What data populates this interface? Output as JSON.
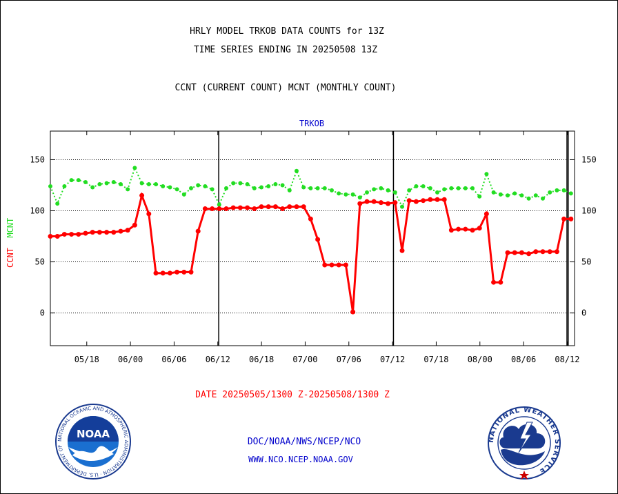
{
  "header": {
    "title_line1": "HRLY MODEL TRKOB DATA COUNTS for 13Z",
    "title_line2": "TIME SERIES ENDING IN 20250508 13Z",
    "subtitle": "CCNT (CURRENT COUNT) MCNT (MONTHLY COUNT)"
  },
  "footer": {
    "date_range": "DATE 20250505/1300 Z-20250508/1300 Z",
    "link1": "DOC/NOAA/NWS/NCEP/NCO",
    "link2": "WWW.NCO.NCEP.NOAA.GOV"
  },
  "logos": {
    "noaa": {
      "text": "NOAA",
      "ring_text": "NATIONAL OCEANIC AND ATMOSPHERIC ADMINISTRATION · U.S. DEPARTMENT OF COMMERCE",
      "color": "#1a3a8f"
    },
    "nws": {
      "ring_text": "NATIONAL WEATHER SERVICE",
      "color": "#1a3a8f"
    }
  },
  "colors": {
    "ccnt": "#ff0000",
    "mcnt": "#22dd22",
    "panel": "#0000cc"
  },
  "chart_data": {
    "type": "line",
    "title": "TRKOB",
    "ylabel_parts": [
      "CCNT",
      "MCNT"
    ],
    "ylim": [
      -32,
      178
    ],
    "yticks": [
      0,
      50,
      100,
      150
    ],
    "x_tick_labels": [
      "05/18",
      "06/00",
      "06/06",
      "06/12",
      "06/18",
      "07/00",
      "07/06",
      "07/12",
      "07/18",
      "08/00",
      "08/06",
      "08/12"
    ],
    "x_day_boundaries": [
      "06/00",
      "07/00",
      "08/00"
    ],
    "x_first_hour": "05/13",
    "x_last_hour": "08/13",
    "series": [
      {
        "name": "CCNT",
        "color": "#ff0000",
        "values": [
          75,
          75,
          77,
          77,
          77,
          78,
          79,
          79,
          79,
          79,
          80,
          81,
          86,
          115,
          97,
          39,
          39,
          39,
          40,
          40,
          40,
          80,
          102,
          102,
          102,
          102,
          103,
          103,
          103,
          102,
          104,
          104,
          104,
          102,
          104,
          104,
          104,
          92,
          72,
          47,
          47,
          47,
          47,
          1,
          107,
          109,
          109,
          108,
          107,
          108,
          61,
          110,
          109,
          110,
          111,
          111,
          111,
          81,
          82,
          82,
          81,
          83,
          97,
          30,
          30,
          59,
          59,
          59,
          58,
          60,
          60,
          60,
          60,
          92,
          92
        ]
      },
      {
        "name": "MCNT",
        "color": "#22dd22",
        "values": [
          124,
          107,
          124,
          130,
          130,
          128,
          123,
          126,
          127,
          128,
          126,
          121,
          142,
          127,
          126,
          126,
          124,
          123,
          121,
          116,
          122,
          125,
          124,
          121,
          106,
          122,
          127,
          127,
          126,
          122,
          123,
          124,
          126,
          125,
          120,
          139,
          123,
          122,
          122,
          122,
          120,
          117,
          116,
          116,
          113,
          118,
          121,
          122,
          120,
          118,
          104,
          120,
          124,
          124,
          122,
          118,
          121,
          122,
          122,
          122,
          122,
          114,
          136,
          118,
          116,
          115,
          117,
          115,
          112,
          115,
          112,
          118,
          120,
          120,
          117
        ]
      }
    ]
  }
}
